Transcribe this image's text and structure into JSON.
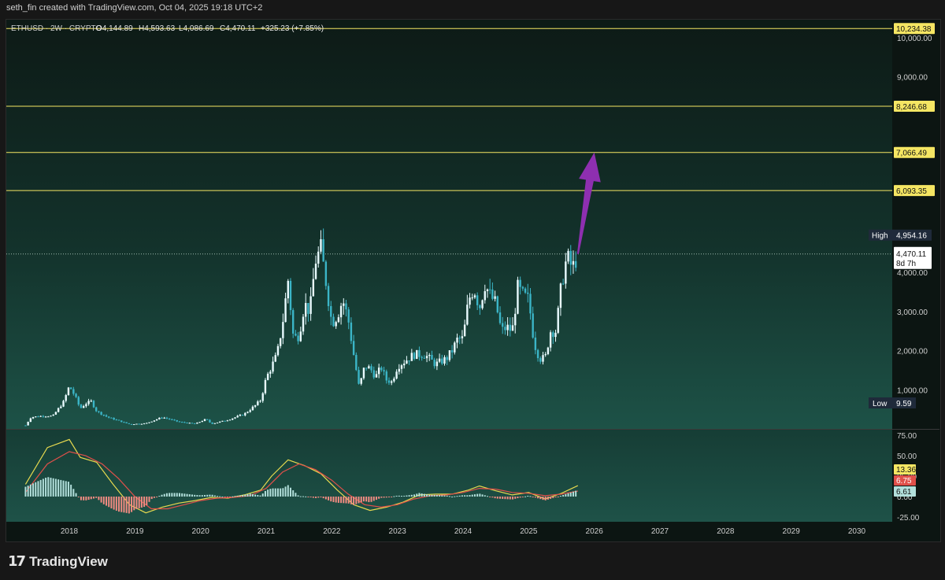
{
  "header": {
    "attribution": "seth_fin created with TradingView.com, Oct 04, 2025 19:18 UTC+2"
  },
  "legend": {
    "symbol": "ETHUSD · 2W · CRYPTO",
    "open": "O4,144.89",
    "high": "H4,593.63",
    "low": "L4,086.69",
    "close": "C4,470.11",
    "change": "+325.23 (+7.85%)"
  },
  "footer": {
    "brand": "TradingView"
  },
  "chart_data": [
    {
      "type": "candlestick",
      "title": "ETHUSD · 2W · CRYPTO",
      "ylim": [
        0,
        10400
      ],
      "x_ticks": [
        "2018",
        "2019",
        "2020",
        "2021",
        "2022",
        "2023",
        "2024",
        "2025",
        "2026",
        "2027",
        "2028",
        "2029",
        "2030"
      ],
      "y_ticks": [
        "1,000.00",
        "2,000.00",
        "3,000.00",
        "4,000.00",
        "9,000.00",
        "10,000.00"
      ],
      "price_series": [
        {
          "date": "2017-05",
          "value": 90
        },
        {
          "date": "2017-06",
          "value": 300
        },
        {
          "date": "2017-08",
          "value": 330
        },
        {
          "date": "2017-10",
          "value": 330
        },
        {
          "date": "2017-12",
          "value": 700
        },
        {
          "date": "2018-01",
          "value": 1100
        },
        {
          "date": "2018-02",
          "value": 850
        },
        {
          "date": "2018-03",
          "value": 520
        },
        {
          "date": "2018-04",
          "value": 650
        },
        {
          "date": "2018-05",
          "value": 700
        },
        {
          "date": "2018-06",
          "value": 450
        },
        {
          "date": "2018-08",
          "value": 300
        },
        {
          "date": "2018-10",
          "value": 210
        },
        {
          "date": "2018-12",
          "value": 120
        },
        {
          "date": "2019-03",
          "value": 140
        },
        {
          "date": "2019-06",
          "value": 300
        },
        {
          "date": "2019-09",
          "value": 180
        },
        {
          "date": "2019-12",
          "value": 130
        },
        {
          "date": "2020-02",
          "value": 250
        },
        {
          "date": "2020-03",
          "value": 130
        },
        {
          "date": "2020-06",
          "value": 230
        },
        {
          "date": "2020-09",
          "value": 380
        },
        {
          "date": "2020-11",
          "value": 600
        },
        {
          "date": "2020-12",
          "value": 740
        },
        {
          "date": "2021-01",
          "value": 1300
        },
        {
          "date": "2021-02",
          "value": 1600
        },
        {
          "date": "2021-03",
          "value": 1900
        },
        {
          "date": "2021-04",
          "value": 2700
        },
        {
          "date": "2021-05",
          "value": 3800
        },
        {
          "date": "2021-06",
          "value": 2300
        },
        {
          "date": "2021-07",
          "value": 2400
        },
        {
          "date": "2021-08",
          "value": 3200
        },
        {
          "date": "2021-09",
          "value": 3000
        },
        {
          "date": "2021-10",
          "value": 4300
        },
        {
          "date": "2021-11",
          "value": 4600
        },
        {
          "date": "2021-12",
          "value": 3700
        },
        {
          "date": "2022-01",
          "value": 2700
        },
        {
          "date": "2022-02",
          "value": 2900
        },
        {
          "date": "2022-03",
          "value": 3300
        },
        {
          "date": "2022-04",
          "value": 2800
        },
        {
          "date": "2022-05",
          "value": 1900
        },
        {
          "date": "2022-06",
          "value": 1050
        },
        {
          "date": "2022-07",
          "value": 1600
        },
        {
          "date": "2022-08",
          "value": 1550
        },
        {
          "date": "2022-09",
          "value": 1330
        },
        {
          "date": "2022-10",
          "value": 1580
        },
        {
          "date": "2022-11",
          "value": 1250
        },
        {
          "date": "2022-12",
          "value": 1200
        },
        {
          "date": "2023-01",
          "value": 1600
        },
        {
          "date": "2023-03",
          "value": 1800
        },
        {
          "date": "2023-04",
          "value": 1900
        },
        {
          "date": "2023-06",
          "value": 1900
        },
        {
          "date": "2023-08",
          "value": 1650
        },
        {
          "date": "2023-10",
          "value": 1800
        },
        {
          "date": "2023-11",
          "value": 2000
        },
        {
          "date": "2023-12",
          "value": 2300
        },
        {
          "date": "2024-01",
          "value": 2300
        },
        {
          "date": "2024-02",
          "value": 3300
        },
        {
          "date": "2024-03",
          "value": 3600
        },
        {
          "date": "2024-04",
          "value": 3100
        },
        {
          "date": "2024-05",
          "value": 3700
        },
        {
          "date": "2024-06",
          "value": 3400
        },
        {
          "date": "2024-07",
          "value": 3200
        },
        {
          "date": "2024-08",
          "value": 2500
        },
        {
          "date": "2024-09",
          "value": 2600
        },
        {
          "date": "2024-10",
          "value": 2500
        },
        {
          "date": "2024-11",
          "value": 3600
        },
        {
          "date": "2024-12",
          "value": 3400
        },
        {
          "date": "2025-01",
          "value": 3300
        },
        {
          "date": "2025-02",
          "value": 2200
        },
        {
          "date": "2025-03",
          "value": 1800
        },
        {
          "date": "2025-04",
          "value": 1800
        },
        {
          "date": "2025-05",
          "value": 2500
        },
        {
          "date": "2025-06",
          "value": 2500
        },
        {
          "date": "2025-07",
          "value": 3700
        },
        {
          "date": "2025-08",
          "value": 4400
        },
        {
          "date": "2025-09",
          "value": 4100
        },
        {
          "date": "2025-10",
          "value": 4470
        }
      ],
      "horizontal_levels": [
        {
          "value": 10234.38,
          "label": "10,234.38",
          "color": "#f5e663"
        },
        {
          "value": 8246.68,
          "label": "8,246.68",
          "color": "#f5e663"
        },
        {
          "value": 7066.49,
          "label": "7,066.49",
          "color": "#f5e663"
        },
        {
          "value": 6093.35,
          "label": "6,093.35",
          "color": "#f5e663"
        }
      ],
      "markers": {
        "high": {
          "label": "High",
          "value_text": "4,954.16",
          "value": 4954.16
        },
        "low": {
          "label": "Low",
          "value_text": "9.59",
          "value": 9.59
        },
        "current": {
          "value_text": "4,470.11",
          "countdown": "8d 7h",
          "value": 4470.11
        }
      },
      "annotation": {
        "type": "arrow",
        "color": "#8e2fb0",
        "from": {
          "date": "2025-10",
          "value": 4470
        },
        "to": {
          "date": "2026-01",
          "value": 7066
        }
      }
    },
    {
      "type": "line",
      "y_ticks": [
        "75.00",
        "50.00",
        "25.00",
        "0.00",
        "-25.00"
      ],
      "ylim": [
        -28,
        80
      ],
      "series": [
        {
          "color": "#e6d94f",
          "values": [
            {
              "date": "2017-05",
              "value": 15
            },
            {
              "date": "2017-09",
              "value": 60
            },
            {
              "date": "2018-01",
              "value": 70
            },
            {
              "date": "2018-03",
              "value": 48
            },
            {
              "date": "2018-06",
              "value": 42
            },
            {
              "date": "2018-09",
              "value": 15
            },
            {
              "date": "2018-12",
              "value": -10
            },
            {
              "date": "2019-03",
              "value": -20
            },
            {
              "date": "2019-06",
              "value": -13
            },
            {
              "date": "2019-09",
              "value": -8
            },
            {
              "date": "2019-12",
              "value": -5
            },
            {
              "date": "2020-03",
              "value": -1
            },
            {
              "date": "2020-06",
              "value": -2
            },
            {
              "date": "2020-09",
              "value": 2
            },
            {
              "date": "2020-12",
              "value": 8
            },
            {
              "date": "2021-02",
              "value": 25
            },
            {
              "date": "2021-05",
              "value": 45
            },
            {
              "date": "2021-08",
              "value": 38
            },
            {
              "date": "2021-11",
              "value": 28
            },
            {
              "date": "2022-02",
              "value": 8
            },
            {
              "date": "2022-05",
              "value": -10
            },
            {
              "date": "2022-08",
              "value": -17
            },
            {
              "date": "2022-11",
              "value": -13
            },
            {
              "date": "2023-02",
              "value": -7
            },
            {
              "date": "2023-05",
              "value": 2
            },
            {
              "date": "2023-08",
              "value": 3
            },
            {
              "date": "2023-11",
              "value": 3
            },
            {
              "date": "2024-02",
              "value": 8
            },
            {
              "date": "2024-04",
              "value": 13
            },
            {
              "date": "2024-07",
              "value": 7
            },
            {
              "date": "2024-10",
              "value": 2
            },
            {
              "date": "2025-01",
              "value": 5
            },
            {
              "date": "2025-04",
              "value": -3
            },
            {
              "date": "2025-07",
              "value": 4
            },
            {
              "date": "2025-10",
              "value": 13.36
            }
          ]
        },
        {
          "color": "#e0504a",
          "values": [
            {
              "date": "2017-05",
              "value": 5
            },
            {
              "date": "2017-09",
              "value": 40
            },
            {
              "date": "2018-01",
              "value": 55
            },
            {
              "date": "2018-04",
              "value": 50
            },
            {
              "date": "2018-07",
              "value": 40
            },
            {
              "date": "2018-10",
              "value": 22
            },
            {
              "date": "2019-01",
              "value": 0
            },
            {
              "date": "2019-04",
              "value": -15
            },
            {
              "date": "2019-07",
              "value": -15
            },
            {
              "date": "2019-10",
              "value": -10
            },
            {
              "date": "2020-01",
              "value": -5
            },
            {
              "date": "2020-04",
              "value": -2
            },
            {
              "date": "2020-07",
              "value": -1
            },
            {
              "date": "2020-10",
              "value": 1
            },
            {
              "date": "2021-01",
              "value": 10
            },
            {
              "date": "2021-04",
              "value": 30
            },
            {
              "date": "2021-07",
              "value": 40
            },
            {
              "date": "2021-10",
              "value": 33
            },
            {
              "date": "2022-01",
              "value": 20
            },
            {
              "date": "2022-04",
              "value": 3
            },
            {
              "date": "2022-07",
              "value": -10
            },
            {
              "date": "2022-10",
              "value": -13
            },
            {
              "date": "2023-01",
              "value": -10
            },
            {
              "date": "2023-04",
              "value": -3
            },
            {
              "date": "2023-07",
              "value": 1
            },
            {
              "date": "2023-10",
              "value": 2
            },
            {
              "date": "2024-01",
              "value": 5
            },
            {
              "date": "2024-04",
              "value": 10
            },
            {
              "date": "2024-07",
              "value": 9
            },
            {
              "date": "2024-10",
              "value": 5
            },
            {
              "date": "2025-01",
              "value": 4
            },
            {
              "date": "2025-04",
              "value": 1
            },
            {
              "date": "2025-07",
              "value": 3
            },
            {
              "date": "2025-10",
              "value": 6.75
            }
          ]
        },
        {
          "color": "#b2dfdb",
          "type": "histogram",
          "last_value": 6.61
        }
      ],
      "value_labels": [
        {
          "text": "13.36",
          "color": "#f5e663"
        },
        {
          "text": "6.75",
          "color": "#e0504a"
        },
        {
          "text": "6.61",
          "color": "#b2dfdb"
        }
      ]
    }
  ]
}
